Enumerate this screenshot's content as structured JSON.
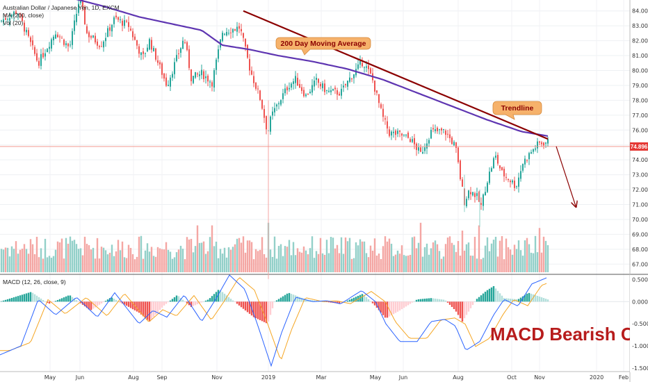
{
  "header": {
    "symbol_line": "Australian Dollar / Japanese Yen, 1D, EXCM",
    "ma_line": "MA (200, close)",
    "vol_line": "Vol (20)"
  },
  "colors": {
    "up": "#26a69a",
    "down": "#ef5350",
    "vol_up": "#93d0c9",
    "vol_down": "#f4a6a3",
    "ma": "#5e35b1",
    "trendline": "#8b0000",
    "price_line": "#f28b82",
    "macd": "#2962ff",
    "signal": "#f5a623",
    "annotation_fill": "#f6b26b",
    "price_tag": "#e53935",
    "bearish_text": "#b71c1c"
  },
  "annotations": {
    "ma_label": "200 Day Moving Average",
    "trend_label": "Trendline",
    "bearish": "MACD Bearish Cro"
  },
  "price_tag": "74.896",
  "chart_data": [
    {
      "type": "candlestick",
      "title": "Australian Dollar / Japanese Yen, 1D, EXCM",
      "ylim": [
        66.5,
        84.5
      ],
      "price_ticks": [
        "84.000",
        "83.000",
        "82.000",
        "81.000",
        "80.000",
        "79.000",
        "78.000",
        "77.000",
        "76.000",
        "75.000",
        "74.000",
        "73.000",
        "72.000",
        "71.000",
        "70.000",
        "69.000",
        "68.000",
        "67.000"
      ],
      "months": [
        "May",
        "Jun",
        "Aug",
        "Sep",
        "Nov",
        "2019",
        "Mar",
        "May",
        "Jun",
        "Aug",
        "Oct",
        "Nov",
        "2020",
        "Feb"
      ],
      "price_keypoints": [
        [
          0,
          83.3
        ],
        [
          25,
          84.0
        ],
        [
          55,
          80.5
        ],
        [
          80,
          82.6
        ],
        [
          100,
          81.5
        ],
        [
          115,
          85.0
        ],
        [
          125,
          82.5
        ],
        [
          145,
          81.7
        ],
        [
          165,
          83.5
        ],
        [
          185,
          83.0
        ],
        [
          205,
          80.8
        ],
        [
          215,
          82.0
        ],
        [
          230,
          80.2
        ],
        [
          240,
          79.0
        ],
        [
          265,
          82.2
        ],
        [
          275,
          79.5
        ],
        [
          290,
          79.8
        ],
        [
          305,
          79.2
        ],
        [
          320,
          82.6
        ],
        [
          345,
          82.9
        ],
        [
          360,
          80.0
        ],
        [
          375,
          78.0
        ],
        [
          385,
          75.8
        ],
        [
          390,
          76.9
        ],
        [
          400,
          77.8
        ],
        [
          415,
          79.0
        ],
        [
          425,
          79.4
        ],
        [
          440,
          78.3
        ],
        [
          455,
          79.3
        ],
        [
          470,
          78.6
        ],
        [
          490,
          78.5
        ],
        [
          505,
          79.6
        ],
        [
          522,
          80.6
        ],
        [
          535,
          79.5
        ],
        [
          550,
          76.9
        ],
        [
          560,
          75.8
        ],
        [
          575,
          75.7
        ],
        [
          590,
          75.4
        ],
        [
          605,
          74.4
        ],
        [
          620,
          75.9
        ],
        [
          640,
          75.9
        ],
        [
          655,
          74.9
        ],
        [
          662,
          72.8
        ],
        [
          668,
          71.2
        ],
        [
          675,
          72.0
        ],
        [
          685,
          71.6
        ],
        [
          692,
          70.9
        ],
        [
          700,
          72.5
        ],
        [
          712,
          74.3
        ],
        [
          722,
          73.1
        ],
        [
          735,
          72.6
        ],
        [
          742,
          72.2
        ],
        [
          752,
          73.8
        ],
        [
          765,
          74.6
        ],
        [
          775,
          75.1
        ],
        [
          788,
          75.2
        ]
      ],
      "ma_keypoints": [
        [
          100,
          84.9
        ],
        [
          150,
          84.3
        ],
        [
          200,
          83.6
        ],
        [
          250,
          83.1
        ],
        [
          290,
          82.7
        ],
        [
          320,
          81.7
        ],
        [
          360,
          81.4
        ],
        [
          400,
          81.0
        ],
        [
          450,
          80.6
        ],
        [
          500,
          80.1
        ],
        [
          550,
          79.4
        ],
        [
          600,
          78.5
        ],
        [
          650,
          77.6
        ],
        [
          700,
          76.7
        ],
        [
          750,
          75.9
        ],
        [
          788,
          75.6
        ]
      ],
      "trendline": {
        "from": [
          350,
          84.0
        ],
        "to": [
          788,
          75.4
        ]
      },
      "projection": {
        "from": [
          800,
          74.9
        ],
        "to": [
          828,
          70.9
        ]
      },
      "last_price": 74.896
    },
    {
      "type": "bar",
      "title": "Vol (20)",
      "note": "volume bars, relative height 0-1",
      "spikes": [
        [
          283,
          0.9
        ],
        [
          305,
          0.9
        ],
        [
          385,
          0.95
        ],
        [
          540,
          0.65
        ],
        [
          606,
          0.95
        ],
        [
          660,
          0.6
        ],
        [
          666,
          0.8
        ],
        [
          688,
          0.9
        ],
        [
          775,
          0.85
        ]
      ]
    },
    {
      "type": "line",
      "title": "MACD (12, 26, close, 9)",
      "ylim": [
        -1.5,
        0.6
      ],
      "ticks": [
        "0.500",
        "0.000",
        "-0.500",
        "-1.000",
        "-1.500"
      ],
      "macd_keypoints": [
        [
          0,
          -1.2
        ],
        [
          30,
          -1.0
        ],
        [
          55,
          0.05
        ],
        [
          80,
          -0.3
        ],
        [
          110,
          0.1
        ],
        [
          140,
          -0.35
        ],
        [
          165,
          0.2
        ],
        [
          200,
          -0.5
        ],
        [
          220,
          -0.2
        ],
        [
          240,
          -0.35
        ],
        [
          265,
          0.15
        ],
        [
          290,
          -0.45
        ],
        [
          310,
          0.05
        ],
        [
          330,
          0.6
        ],
        [
          352,
          0.28
        ],
        [
          370,
          -0.5
        ],
        [
          390,
          -1.45
        ],
        [
          405,
          -0.7
        ],
        [
          425,
          0.1
        ],
        [
          450,
          0.0
        ],
        [
          470,
          0.02
        ],
        [
          490,
          -0.05
        ],
        [
          505,
          0.1
        ],
        [
          520,
          0.25
        ],
        [
          540,
          0.0
        ],
        [
          555,
          -0.5
        ],
        [
          575,
          -0.9
        ],
        [
          600,
          -0.9
        ],
        [
          620,
          -0.45
        ],
        [
          640,
          -0.4
        ],
        [
          655,
          -0.55
        ],
        [
          670,
          -1.1
        ],
        [
          690,
          -0.9
        ],
        [
          710,
          -0.3
        ],
        [
          725,
          0.05
        ],
        [
          745,
          -0.1
        ],
        [
          765,
          0.4
        ],
        [
          788,
          0.55
        ]
      ],
      "hist_keypoints": [
        [
          0,
          0.0
        ],
        [
          45,
          0.22
        ],
        [
          70,
          -0.05
        ],
        [
          100,
          0.15
        ],
        [
          130,
          -0.2
        ],
        [
          160,
          0.1
        ],
        [
          200,
          -0.25
        ],
        [
          215,
          -0.45
        ],
        [
          235,
          -0.1
        ],
        [
          255,
          0.15
        ],
        [
          275,
          -0.12
        ],
        [
          300,
          0.05
        ],
        [
          315,
          0.28
        ],
        [
          345,
          -0.1
        ],
        [
          365,
          -0.35
        ],
        [
          385,
          -0.5
        ],
        [
          395,
          0.0
        ],
        [
          415,
          0.2
        ],
        [
          440,
          0.05
        ],
        [
          465,
          0.0
        ],
        [
          490,
          -0.05
        ],
        [
          505,
          0.06
        ],
        [
          522,
          0.18
        ],
        [
          540,
          -0.1
        ],
        [
          555,
          -0.38
        ],
        [
          575,
          -0.2
        ],
        [
          600,
          0.05
        ],
        [
          620,
          0.08
        ],
        [
          640,
          0.04
        ],
        [
          655,
          -0.2
        ],
        [
          665,
          -0.45
        ],
        [
          685,
          0.05
        ],
        [
          700,
          0.25
        ],
        [
          710,
          0.35
        ],
        [
          725,
          0.08
        ],
        [
          745,
          0.05
        ],
        [
          760,
          0.2
        ],
        [
          788,
          0.05
        ]
      ]
    }
  ]
}
